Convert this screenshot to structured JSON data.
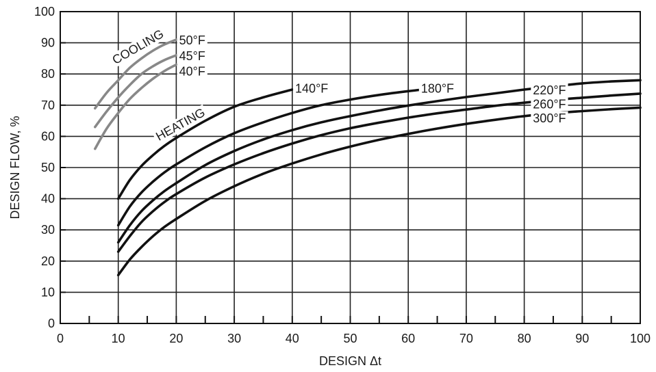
{
  "chart_data": {
    "type": "line",
    "xlabel": "DESIGN Δt",
    "ylabel": "DESIGN FLOW, %",
    "xlim": [
      0,
      100
    ],
    "ylim": [
      0,
      100
    ],
    "x_ticks": [
      0,
      10,
      20,
      30,
      40,
      50,
      60,
      70,
      80,
      90,
      100
    ],
    "y_ticks": [
      0,
      10,
      20,
      30,
      40,
      50,
      60,
      70,
      80,
      90,
      100
    ],
    "x_minor_step": 5,
    "grid": true,
    "annotations": [
      {
        "text": "COOLING",
        "x": 9.5,
        "y": 83,
        "rotate": -30
      },
      {
        "text": "HEATING",
        "x": 17,
        "y": 58.5,
        "rotate": -29
      }
    ],
    "series": [
      {
        "name": "50°F",
        "group": "cooling",
        "color": "#888888",
        "label_pos": {
          "x": 20.5,
          "y": 91
        },
        "x": [
          6,
          8,
          10,
          12,
          14,
          16,
          18,
          20
        ],
        "y": [
          69,
          74,
          78,
          82,
          85,
          87.5,
          89.5,
          91
        ]
      },
      {
        "name": "45°F",
        "group": "cooling",
        "color": "#888888",
        "label_pos": {
          "x": 20.5,
          "y": 86
        },
        "x": [
          6,
          8,
          10,
          12,
          14,
          16,
          18,
          20
        ],
        "y": [
          63,
          68,
          72.5,
          76.5,
          80,
          82.5,
          84.5,
          86
        ]
      },
      {
        "name": "40°F",
        "group": "cooling",
        "color": "#888888",
        "label_pos": {
          "x": 20.5,
          "y": 81
        },
        "x": [
          6,
          8,
          10,
          12,
          14,
          16,
          18,
          20
        ],
        "y": [
          56,
          62.5,
          67.5,
          72,
          75.5,
          78.5,
          81,
          83
        ]
      },
      {
        "name": "140°F",
        "group": "heating",
        "color": "#111111",
        "label_pos": {
          "x": 40.5,
          "y": 75.5
        },
        "x": [
          10,
          12,
          14,
          16,
          18,
          20,
          25,
          30,
          35,
          40
        ],
        "y": [
          40,
          46,
          50.5,
          54,
          57,
          59.5,
          65,
          69.5,
          72.5,
          75
        ]
      },
      {
        "name": "180°F",
        "group": "heating",
        "color": "#111111",
        "label_pos": {
          "x": 62.2,
          "y": 75.5
        },
        "x": [
          10,
          12,
          14,
          16,
          18,
          20,
          25,
          30,
          35,
          40,
          45,
          50,
          55,
          60,
          64
        ],
        "y": [
          31.5,
          37.5,
          42,
          45.5,
          48.5,
          51,
          56.5,
          61,
          64.5,
          67.5,
          70,
          71.8,
          73.3,
          74.5,
          75.3
        ]
      },
      {
        "name": "220°F",
        "group": "heating",
        "color": "#111111",
        "label_pos": {
          "x": 81.5,
          "y": 75
        },
        "x": [
          10,
          12,
          14,
          16,
          18,
          20,
          25,
          30,
          35,
          40,
          45,
          50,
          55,
          60,
          65,
          70,
          75,
          80,
          85,
          90,
          95,
          100
        ],
        "y": [
          26,
          31.5,
          36,
          39.5,
          42.5,
          45,
          50.8,
          55.3,
          59,
          62,
          64.5,
          66.5,
          68.3,
          69.9,
          71.3,
          72.6,
          73.8,
          75,
          76,
          77,
          77.6,
          78
        ]
      },
      {
        "name": "260°F",
        "group": "heating",
        "color": "#111111",
        "label_pos": {
          "x": 81.5,
          "y": 70.5
        },
        "x": [
          10,
          12,
          14,
          16,
          18,
          20,
          25,
          30,
          35,
          40,
          45,
          50,
          55,
          60,
          65,
          70,
          75,
          80,
          85,
          90,
          95,
          100
        ],
        "y": [
          23,
          28,
          32.5,
          36,
          39,
          41.5,
          46.8,
          51,
          54.6,
          57.7,
          60.4,
          62.6,
          64.4,
          66,
          67.4,
          68.6,
          69.8,
          70.8,
          71.7,
          72.4,
          73.1,
          73.7
        ]
      },
      {
        "name": "300°F",
        "group": "heating",
        "color": "#111111",
        "label_pos": {
          "x": 81.5,
          "y": 66
        },
        "x": [
          10,
          12,
          14,
          16,
          18,
          20,
          25,
          30,
          35,
          40,
          45,
          50,
          55,
          60,
          65,
          70,
          75,
          80,
          85,
          90,
          95,
          100
        ],
        "y": [
          15.5,
          20.5,
          24.5,
          28,
          31,
          33.5,
          39.3,
          44,
          48,
          51.3,
          54.2,
          56.7,
          58.9,
          60.8,
          62.5,
          64,
          65.3,
          66.5,
          67.4,
          68.1,
          68.7,
          69.2
        ]
      }
    ]
  }
}
